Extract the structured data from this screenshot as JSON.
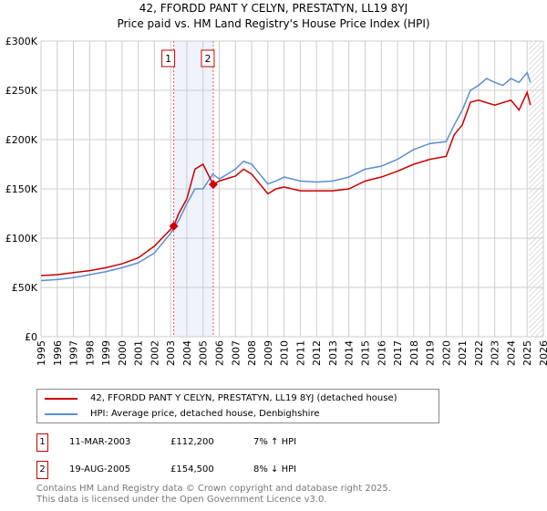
{
  "chart_data": {
    "type": "line",
    "title": "42, FFORDD PANT Y CELYN, PRESTATYN, LL19 8YJ",
    "subtitle": "Price paid vs. HM Land Registry's House Price Index (HPI)",
    "xlim": [
      1995,
      2026
    ],
    "ylim": [
      0,
      300000
    ],
    "y_ticks": [
      {
        "v": 0,
        "label": "£0"
      },
      {
        "v": 50000,
        "label": "£50K"
      },
      {
        "v": 100000,
        "label": "£100K"
      },
      {
        "v": 150000,
        "label": "£150K"
      },
      {
        "v": 200000,
        "label": "£200K"
      },
      {
        "v": 250000,
        "label": "£250K"
      },
      {
        "v": 300000,
        "label": "£300K"
      }
    ],
    "x_ticks": [
      "1995",
      "1996",
      "1997",
      "1998",
      "1999",
      "2000",
      "2001",
      "2002",
      "2003",
      "2004",
      "2005",
      "2006",
      "2007",
      "2008",
      "2009",
      "2010",
      "2011",
      "2012",
      "2013",
      "2014",
      "2015",
      "2016",
      "2017",
      "2018",
      "2019",
      "2020",
      "2021",
      "2022",
      "2023",
      "2024",
      "2025",
      "2026"
    ],
    "grid": true,
    "shaded_range": [
      2003.19,
      2005.63
    ],
    "hatched_from": 2025.1,
    "series": [
      {
        "name": "42, FFORDD PANT Y CELYN, PRESTATYN, LL19 8YJ (detached house)",
        "color": "#cc0000",
        "x": [
          1995,
          1996,
          1997,
          1998,
          1999,
          2000,
          2001,
          2002,
          2003.19,
          2003.5,
          2004,
          2004.5,
          2005,
          2005.3,
          2005.63,
          2006,
          2007,
          2007.5,
          2008,
          2008.5,
          2009,
          2009.5,
          2010,
          2011,
          2012,
          2013,
          2014,
          2015,
          2016,
          2017,
          2018,
          2019,
          2020,
          2020.5,
          2021,
          2021.5,
          2022,
          2023,
          2024,
          2024.5,
          2025,
          2025.2
        ],
        "y": [
          62000,
          63000,
          65000,
          67000,
          70000,
          74000,
          80000,
          92000,
          112200,
          125000,
          140000,
          170000,
          175000,
          165000,
          154500,
          158000,
          163000,
          170000,
          165000,
          155000,
          145000,
          150000,
          152000,
          148000,
          148000,
          148000,
          150000,
          158000,
          162000,
          168000,
          175000,
          180000,
          183000,
          205000,
          215000,
          238000,
          240000,
          235000,
          240000,
          230000,
          248000,
          235000
        ]
      },
      {
        "name": "HPI: Average price, detached house, Denbighshire",
        "color": "#5b8fd0",
        "x": [
          1995,
          1996,
          1997,
          1998,
          1999,
          2000,
          2001,
          2002,
          2003,
          2003.5,
          2004,
          2004.5,
          2005,
          2005.6,
          2006,
          2007,
          2007.5,
          2008,
          2008.5,
          2009,
          2009.5,
          2010,
          2011,
          2012,
          2013,
          2014,
          2015,
          2016,
          2017,
          2018,
          2019,
          2020,
          2020.5,
          2021,
          2021.5,
          2022,
          2022.5,
          2023,
          2023.5,
          2024,
          2024.5,
          2025,
          2025.2
        ],
        "y": [
          57000,
          58000,
          60000,
          63000,
          66000,
          70000,
          75000,
          85000,
          105000,
          118000,
          135000,
          150000,
          150000,
          165000,
          160000,
          170000,
          178000,
          175000,
          165000,
          155000,
          158000,
          162000,
          158000,
          157000,
          158000,
          162000,
          170000,
          173000,
          180000,
          190000,
          196000,
          198000,
          215000,
          230000,
          250000,
          255000,
          262000,
          258000,
          255000,
          262000,
          258000,
          268000,
          258000
        ]
      }
    ],
    "sales": [
      {
        "label": "1",
        "x": 2003.19,
        "y": 112200
      },
      {
        "label": "2",
        "x": 2005.63,
        "y": 154500
      }
    ]
  },
  "legend": [
    "42, FFORDD PANT Y CELYN, PRESTATYN, LL19 8YJ (detached house)",
    "HPI: Average price, detached house, Denbighshire"
  ],
  "transactions": [
    {
      "num": "1",
      "date": "11-MAR-2003",
      "price": "£112,200",
      "hpi": "7% ↑ HPI"
    },
    {
      "num": "2",
      "date": "19-AUG-2005",
      "price": "£154,500",
      "hpi": "8% ↓ HPI"
    }
  ],
  "footer": [
    "Contains HM Land Registry data © Crown copyright and database right 2025.",
    "This data is licensed under the Open Government Licence v3.0."
  ]
}
